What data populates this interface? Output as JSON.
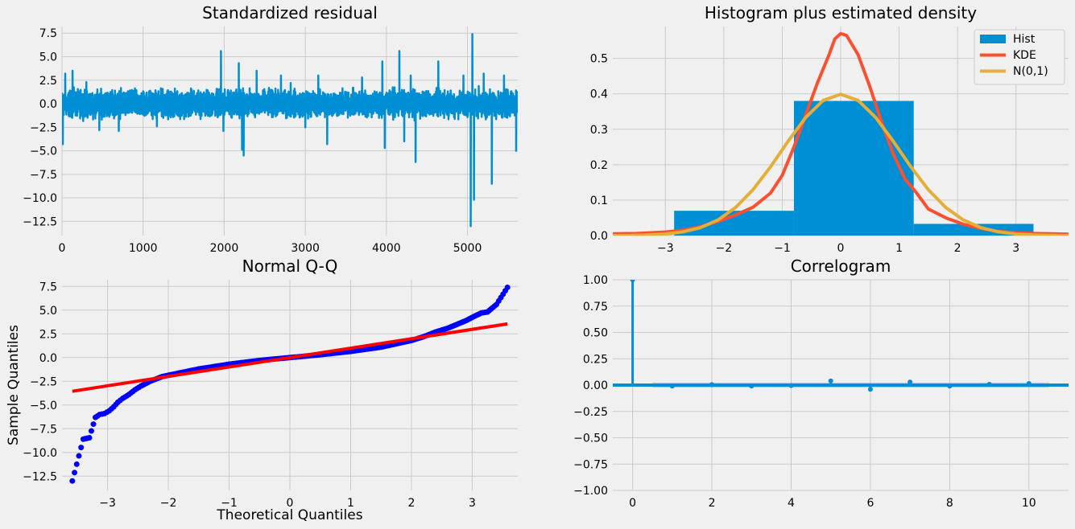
{
  "chart_data": [
    {
      "type": "line",
      "title": "Standardized residual",
      "xlabel": "",
      "ylabel": "",
      "xlim": [
        0,
        5620
      ],
      "ylim": [
        -14,
        8.2
      ],
      "xticks": [
        0,
        1000,
        2000,
        3000,
        4000,
        5000
      ],
      "xtick_labels": [
        "0",
        "1000",
        "2000",
        "3000",
        "4000",
        "5000"
      ],
      "yticks": [
        -12.5,
        -10,
        -7.5,
        -5,
        -2.5,
        0,
        2.5,
        5,
        7.5
      ],
      "ytick_labels": [
        "−12.5",
        "−10.0",
        "−7.5",
        "−5.0",
        "−2.5",
        "0.0",
        "2.5",
        "5.0",
        "7.5"
      ],
      "grid": true,
      "color": "#008fd5",
      "n_points": 5620,
      "spikes": [
        {
          "x": 10,
          "y": -4.3
        },
        {
          "x": 40,
          "y": 3.2
        },
        {
          "x": 130,
          "y": 3.5
        },
        {
          "x": 300,
          "y": 2.3
        },
        {
          "x": 460,
          "y": -2.8
        },
        {
          "x": 700,
          "y": -2.9
        },
        {
          "x": 1170,
          "y": -2.4
        },
        {
          "x": 1960,
          "y": 5.6
        },
        {
          "x": 1990,
          "y": -2.9
        },
        {
          "x": 2180,
          "y": 4.3
        },
        {
          "x": 2220,
          "y": -4.9
        },
        {
          "x": 2240,
          "y": -5.5
        },
        {
          "x": 2400,
          "y": 3.5
        },
        {
          "x": 2700,
          "y": 3.0
        },
        {
          "x": 2820,
          "y": 2.2
        },
        {
          "x": 3000,
          "y": -2.5
        },
        {
          "x": 3160,
          "y": 3.0
        },
        {
          "x": 3270,
          "y": -4.3
        },
        {
          "x": 3700,
          "y": 2.8
        },
        {
          "x": 3950,
          "y": 4.5
        },
        {
          "x": 3980,
          "y": -4.7
        },
        {
          "x": 4160,
          "y": 5.6
        },
        {
          "x": 4220,
          "y": -4.0
        },
        {
          "x": 4300,
          "y": 3.0
        },
        {
          "x": 4360,
          "y": -6.2
        },
        {
          "x": 4640,
          "y": 4.5
        },
        {
          "x": 4950,
          "y": 3.0
        },
        {
          "x": 5040,
          "y": -13.0
        },
        {
          "x": 5060,
          "y": 7.4
        },
        {
          "x": 5080,
          "y": -10.2
        },
        {
          "x": 5200,
          "y": 3.2
        },
        {
          "x": 5300,
          "y": -8.5
        },
        {
          "x": 5450,
          "y": 3.0
        },
        {
          "x": 5600,
          "y": -5.0
        }
      ]
    },
    {
      "type": "bar",
      "title": "Histogram plus estimated density",
      "xlim": [
        -3.9,
        3.9
      ],
      "ylim": [
        0,
        0.59
      ],
      "xticks": [
        -3,
        -2,
        -1,
        0,
        1,
        2,
        3
      ],
      "xtick_labels": [
        "−3",
        "−2",
        "−1",
        "0",
        "1",
        "2",
        "3"
      ],
      "yticks": [
        0.0,
        0.1,
        0.2,
        0.3,
        0.4,
        0.5
      ],
      "ytick_labels": [
        "0.0",
        "0.1",
        "0.2",
        "0.3",
        "0.4",
        "0.5"
      ],
      "grid": true,
      "legend_position": "top-right",
      "hist": {
        "name": "Hist",
        "color": "#008fd5",
        "bins": [
          {
            "x0": -2.85,
            "x1": -0.8,
            "value": 0.07
          },
          {
            "x0": -0.8,
            "x1": 1.25,
            "value": 0.38
          },
          {
            "x0": 1.25,
            "x1": 3.3,
            "value": 0.033
          }
        ]
      },
      "series": [
        {
          "name": "KDE",
          "color": "#fc4f30",
          "x": [
            -3.9,
            -3.5,
            -3.0,
            -2.7,
            -2.4,
            -2.1,
            -1.8,
            -1.5,
            -1.2,
            -1.0,
            -0.8,
            -0.6,
            -0.4,
            -0.2,
            -0.1,
            0.0,
            0.1,
            0.3,
            0.5,
            0.7,
            0.9,
            1.1,
            1.3,
            1.5,
            1.8,
            2.1,
            2.4,
            2.7,
            3.0,
            3.3,
            3.6,
            3.9
          ],
          "y": [
            0.005,
            0.006,
            0.01,
            0.015,
            0.025,
            0.04,
            0.058,
            0.08,
            0.12,
            0.17,
            0.25,
            0.34,
            0.43,
            0.51,
            0.555,
            0.57,
            0.565,
            0.51,
            0.42,
            0.32,
            0.23,
            0.16,
            0.12,
            0.075,
            0.05,
            0.032,
            0.02,
            0.012,
            0.008,
            0.006,
            0.005,
            0.004
          ]
        },
        {
          "name": "N(0,1)",
          "color": "#e5ae38",
          "x": [
            -3.9,
            -3.6,
            -3.3,
            -3.0,
            -2.7,
            -2.4,
            -2.1,
            -1.8,
            -1.5,
            -1.2,
            -0.9,
            -0.6,
            -0.3,
            0.0,
            0.3,
            0.6,
            0.9,
            1.2,
            1.5,
            1.8,
            2.1,
            2.4,
            2.7,
            3.0,
            3.3,
            3.6,
            3.9
          ],
          "y": [
            0.0002,
            0.0006,
            0.0017,
            0.0044,
            0.0104,
            0.0224,
            0.044,
            0.079,
            0.1295,
            0.1942,
            0.2661,
            0.3332,
            0.3814,
            0.3989,
            0.3814,
            0.3332,
            0.2661,
            0.1942,
            0.1295,
            0.079,
            0.044,
            0.0224,
            0.0104,
            0.0044,
            0.0017,
            0.0006,
            0.0002
          ]
        }
      ]
    },
    {
      "type": "scatter",
      "title": "Normal Q-Q",
      "xlabel": "Theoretical Quantiles",
      "ylabel": "Sample Quantiles",
      "xlim": [
        -3.75,
        3.75
      ],
      "ylim": [
        -14,
        8.2
      ],
      "xticks": [
        -3,
        -2,
        -1,
        0,
        1,
        2,
        3
      ],
      "xtick_labels": [
        "−3",
        "−2",
        "−1",
        "0",
        "1",
        "2",
        "3"
      ],
      "yticks": [
        -12.5,
        -10,
        -7.5,
        -5,
        -2.5,
        0,
        2.5,
        5,
        7.5
      ],
      "ytick_labels": [
        "−12.5",
        "−10.0",
        "−7.5",
        "−5.0",
        "−2.5",
        "0.0",
        "2.5",
        "5.0",
        "7.5"
      ],
      "grid": true,
      "points_color": "#0000ff",
      "points": [
        {
          "x": -3.58,
          "y": -13.0
        },
        {
          "x": -3.4,
          "y": -8.6
        },
        {
          "x": -3.3,
          "y": -8.45
        },
        {
          "x": -3.2,
          "y": -6.3
        },
        {
          "x": -3.13,
          "y": -6.0
        },
        {
          "x": -3.05,
          "y": -5.9
        },
        {
          "x": -2.97,
          "y": -5.6
        },
        {
          "x": -2.9,
          "y": -5.2
        },
        {
          "x": -2.83,
          "y": -4.7
        },
        {
          "x": -2.75,
          "y": -4.3
        },
        {
          "x": -2.65,
          "y": -3.9
        },
        {
          "x": -2.55,
          "y": -3.4
        },
        {
          "x": -2.45,
          "y": -3.0
        },
        {
          "x": -2.3,
          "y": -2.5
        },
        {
          "x": -2.1,
          "y": -2.0
        },
        {
          "x": -1.8,
          "y": -1.6
        },
        {
          "x": -1.5,
          "y": -1.2
        },
        {
          "x": -1.0,
          "y": -0.7
        },
        {
          "x": -0.5,
          "y": -0.3
        },
        {
          "x": 0.0,
          "y": 0.0
        },
        {
          "x": 0.5,
          "y": 0.3
        },
        {
          "x": 1.0,
          "y": 0.65
        },
        {
          "x": 1.5,
          "y": 1.1
        },
        {
          "x": 2.0,
          "y": 1.8
        },
        {
          "x": 2.2,
          "y": 2.2
        },
        {
          "x": 2.4,
          "y": 2.7
        },
        {
          "x": 2.6,
          "y": 3.1
        },
        {
          "x": 2.75,
          "y": 3.5
        },
        {
          "x": 2.9,
          "y": 3.9
        },
        {
          "x": 3.05,
          "y": 4.4
        },
        {
          "x": 3.15,
          "y": 4.7
        },
        {
          "x": 3.25,
          "y": 4.8
        },
        {
          "x": 3.4,
          "y": 5.6
        },
        {
          "x": 3.58,
          "y": 7.4
        }
      ],
      "fit_line": {
        "color": "#ff0000",
        "x": [
          -3.58,
          3.58
        ],
        "y": [
          -3.55,
          3.55
        ]
      }
    },
    {
      "type": "bar",
      "title": "Correlogram",
      "xlim": [
        -0.5,
        11
      ],
      "ylim": [
        -1.0,
        1.0
      ],
      "xticks": [
        0,
        2,
        4,
        6,
        8,
        10
      ],
      "xtick_labels": [
        "0",
        "2",
        "4",
        "6",
        "8",
        "10"
      ],
      "yticks": [
        -1.0,
        -0.75,
        -0.5,
        -0.25,
        0.0,
        0.25,
        0.5,
        0.75,
        1.0
      ],
      "ytick_labels": [
        "−1.00",
        "−0.75",
        "−0.50",
        "−0.25",
        "0.00",
        "0.25",
        "0.50",
        "0.75",
        "1.00"
      ],
      "grid": true,
      "color": "#008fd5",
      "lags": [
        0,
        1,
        2,
        3,
        4,
        5,
        6,
        7,
        8,
        9,
        10
      ],
      "values": [
        1.0,
        -0.01,
        0.005,
        -0.01,
        -0.005,
        0.04,
        -0.04,
        0.03,
        -0.01,
        0.008,
        0.015
      ],
      "conf_band": [
        -0.025,
        0.025
      ]
    }
  ],
  "legend": {
    "items": [
      {
        "label": "Hist",
        "color": "#008fd5",
        "kind": "patch"
      },
      {
        "label": "KDE",
        "color": "#fc4f30",
        "kind": "line"
      },
      {
        "label": "N(0,1)",
        "color": "#e5ae38",
        "kind": "line"
      }
    ]
  }
}
